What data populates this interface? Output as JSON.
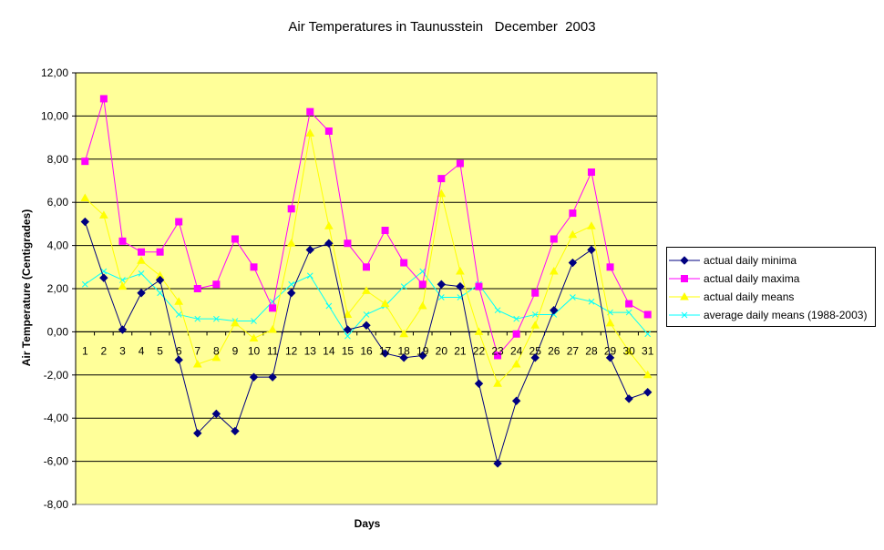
{
  "chart_data": {
    "type": "line",
    "title": "Air Temperatures in Taunusstein   December  2003",
    "xlabel": "Days",
    "ylabel": "Air Temperature (Centigrades)",
    "ylim": [
      -8,
      12
    ],
    "y_ticks": [
      -8,
      -6,
      -4,
      -2,
      0,
      2,
      4,
      6,
      8,
      10,
      12
    ],
    "y_tick_labels": [
      "-8,00",
      "-6,00",
      "-4,00",
      "-2,00",
      "0,00",
      "2,00",
      "4,00",
      "6,00",
      "8,00",
      "10,00",
      "12,00"
    ],
    "categories": [
      "1",
      "2",
      "3",
      "4",
      "5",
      "6",
      "7",
      "8",
      "9",
      "10",
      "11",
      "12",
      "13",
      "14",
      "15",
      "16",
      "17",
      "18",
      "19",
      "20",
      "21",
      "22",
      "23",
      "24",
      "25",
      "26",
      "27",
      "28",
      "29",
      "30",
      "31"
    ],
    "grid": "horizontal",
    "plot_background": "#ffff99",
    "legend_position": "right",
    "series": [
      {
        "name": "actual daily minima",
        "color": "#000080",
        "marker": "diamond",
        "values": [
          5.1,
          2.5,
          0.1,
          1.8,
          2.4,
          -1.3,
          -4.7,
          -3.8,
          -4.6,
          -2.1,
          -2.1,
          1.8,
          3.8,
          4.1,
          0.1,
          0.3,
          -1.0,
          -1.2,
          -1.1,
          2.2,
          2.1,
          -2.4,
          -6.1,
          -3.2,
          -1.2,
          1.0,
          3.2,
          3.8,
          -1.2,
          -3.1,
          -2.8
        ]
      },
      {
        "name": "actual daily maxima",
        "color": "#ff00ff",
        "marker": "square",
        "values": [
          7.9,
          10.8,
          4.2,
          3.7,
          3.7,
          5.1,
          2.0,
          2.2,
          4.3,
          3.0,
          1.1,
          5.7,
          10.2,
          9.3,
          4.1,
          3.0,
          4.7,
          3.2,
          2.2,
          7.1,
          7.8,
          2.1,
          -1.1,
          -0.1,
          1.8,
          4.3,
          5.5,
          7.4,
          3.0,
          1.3,
          0.8
        ]
      },
      {
        "name": "actual daily means",
        "color": "#ffff00",
        "marker": "triangle",
        "values": [
          6.2,
          5.4,
          2.1,
          3.3,
          2.6,
          1.4,
          -1.5,
          -1.2,
          0.4,
          -0.3,
          0.1,
          4.1,
          9.2,
          4.9,
          0.8,
          1.9,
          1.3,
          -0.1,
          1.2,
          6.4,
          2.8,
          0.0,
          -2.4,
          -1.5,
          0.3,
          2.8,
          4.5,
          4.9,
          0.4,
          -0.9,
          -2.0
        ]
      },
      {
        "name": "average daily means (1988-2003)",
        "color": "#00ffff",
        "marker": "x",
        "values": [
          2.2,
          2.8,
          2.4,
          2.7,
          1.8,
          0.8,
          0.6,
          0.6,
          0.5,
          0.5,
          1.4,
          2.2,
          2.6,
          1.2,
          -0.2,
          0.8,
          1.2,
          2.1,
          2.8,
          1.6,
          1.6,
          2.2,
          1.0,
          0.6,
          0.8,
          0.8,
          1.6,
          1.4,
          0.9,
          0.9,
          -0.1
        ]
      }
    ]
  }
}
